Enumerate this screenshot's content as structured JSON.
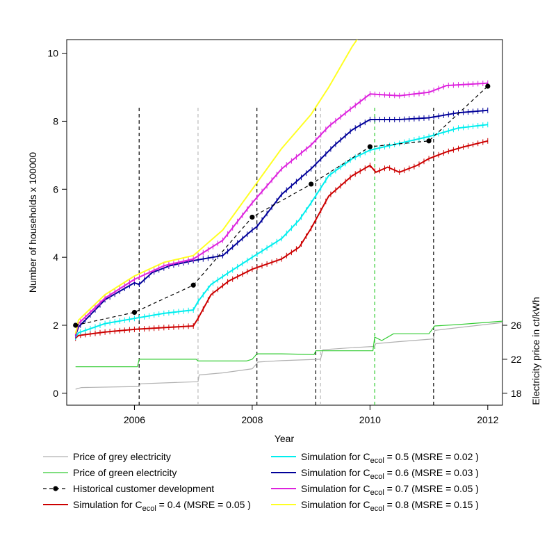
{
  "chart_data": {
    "type": "line",
    "xlabel": "Year",
    "ylabel": "Number of households x 100000",
    "y2label": "Electricity price in ct/kWh",
    "xlim": [
      2004.85,
      2012.25
    ],
    "ylim": [
      -0.35,
      10.4
    ],
    "x_ticks": [
      2006,
      2008,
      2010,
      2012
    ],
    "y_ticks": [
      0,
      2,
      4,
      6,
      8,
      10
    ],
    "y2_ticks": [
      18,
      22,
      26
    ],
    "y2_ticks_at_left_scale": [
      0,
      1,
      2
    ],
    "vlines": [
      {
        "x": 2006.08,
        "color": "#000000",
        "to_y": 8.4
      },
      {
        "x": 2007.08,
        "color": "#bbbbbb",
        "to_y": 8.4
      },
      {
        "x": 2008.08,
        "color": "#000000",
        "to_y": 8.4
      },
      {
        "x": 2009.08,
        "color": "#000000",
        "to_y": 8.4
      },
      {
        "x": 2009.16,
        "color": "#bbbbbb",
        "to_y": 8.4
      },
      {
        "x": 2010.08,
        "color": "#33cc33",
        "to_y": 8.4
      },
      {
        "x": 2011.08,
        "color": "#000000",
        "to_y": 8.4
      }
    ],
    "series": [
      {
        "key": "grey",
        "color": "#b0b0b0",
        "style": "step",
        "points": [
          [
            2005.0,
            0.12
          ],
          [
            2005.1,
            0.17
          ],
          [
            2006.08,
            0.2
          ],
          [
            2006.1,
            0.28
          ],
          [
            2007.08,
            0.34
          ],
          [
            2007.1,
            0.54
          ],
          [
            2007.5,
            0.6
          ],
          [
            2008.0,
            0.72
          ],
          [
            2008.1,
            0.92
          ],
          [
            2008.5,
            0.96
          ],
          [
            2009.16,
            1.0
          ],
          [
            2009.2,
            1.28
          ],
          [
            2009.6,
            1.33
          ],
          [
            2010.08,
            1.38
          ],
          [
            2010.1,
            1.46
          ],
          [
            2010.5,
            1.52
          ],
          [
            2011.08,
            1.6
          ],
          [
            2011.1,
            1.85
          ],
          [
            2011.5,
            1.93
          ],
          [
            2012.25,
            2.08
          ]
        ]
      },
      {
        "key": "green",
        "color": "#33cc33",
        "style": "step",
        "points": [
          [
            2005.0,
            0.78
          ],
          [
            2006.05,
            0.78
          ],
          [
            2006.08,
            1.0
          ],
          [
            2007.05,
            1.0
          ],
          [
            2007.08,
            0.95
          ],
          [
            2007.9,
            0.95
          ],
          [
            2008.0,
            1.0
          ],
          [
            2008.08,
            1.16
          ],
          [
            2008.5,
            1.16
          ],
          [
            2009.05,
            1.14
          ],
          [
            2009.08,
            1.25
          ],
          [
            2010.05,
            1.25
          ],
          [
            2010.08,
            1.65
          ],
          [
            2010.2,
            1.55
          ],
          [
            2010.4,
            1.75
          ],
          [
            2011.0,
            1.75
          ],
          [
            2011.1,
            1.98
          ],
          [
            2011.5,
            2.02
          ],
          [
            2012.25,
            2.12
          ]
        ]
      },
      {
        "key": "hist",
        "color": "#000000",
        "style": "dashed",
        "points": [
          [
            2005.0,
            2.0
          ],
          [
            2006.0,
            2.38
          ],
          [
            2007.0,
            3.18
          ],
          [
            2008.0,
            5.18
          ],
          [
            2009.0,
            6.15
          ],
          [
            2010.0,
            7.25
          ],
          [
            2011.0,
            7.42
          ],
          [
            2012.0,
            9.03
          ]
        ]
      },
      {
        "key": "c04",
        "color": "#cc0000",
        "style": "ticked",
        "points": [
          [
            2005.0,
            1.62
          ],
          [
            2005.05,
            1.7
          ],
          [
            2005.5,
            1.8
          ],
          [
            2006.0,
            1.88
          ],
          [
            2006.5,
            1.93
          ],
          [
            2007.0,
            1.98
          ],
          [
            2007.08,
            2.2
          ],
          [
            2007.3,
            2.9
          ],
          [
            2007.6,
            3.3
          ],
          [
            2008.0,
            3.65
          ],
          [
            2008.5,
            3.95
          ],
          [
            2008.8,
            4.3
          ],
          [
            2009.0,
            4.85
          ],
          [
            2009.3,
            5.8
          ],
          [
            2009.7,
            6.4
          ],
          [
            2010.0,
            6.7
          ],
          [
            2010.1,
            6.5
          ],
          [
            2010.3,
            6.65
          ],
          [
            2010.5,
            6.5
          ],
          [
            2010.8,
            6.7
          ],
          [
            2011.0,
            6.9
          ],
          [
            2011.3,
            7.1
          ],
          [
            2011.6,
            7.25
          ],
          [
            2012.0,
            7.42
          ]
        ]
      },
      {
        "key": "c05",
        "color": "#00eeee",
        "style": "ticked",
        "points": [
          [
            2005.0,
            1.65
          ],
          [
            2005.05,
            1.78
          ],
          [
            2005.5,
            2.05
          ],
          [
            2006.0,
            2.2
          ],
          [
            2006.5,
            2.35
          ],
          [
            2007.0,
            2.45
          ],
          [
            2007.08,
            2.7
          ],
          [
            2007.3,
            3.2
          ],
          [
            2007.6,
            3.55
          ],
          [
            2008.0,
            4.0
          ],
          [
            2008.5,
            4.55
          ],
          [
            2008.8,
            5.1
          ],
          [
            2009.0,
            5.6
          ],
          [
            2009.3,
            6.4
          ],
          [
            2009.7,
            6.9
          ],
          [
            2010.0,
            7.15
          ],
          [
            2010.5,
            7.35
          ],
          [
            2011.0,
            7.55
          ],
          [
            2011.5,
            7.8
          ],
          [
            2012.0,
            7.9
          ]
        ]
      },
      {
        "key": "c06",
        "color": "#000099",
        "style": "ticked",
        "points": [
          [
            2005.0,
            1.7
          ],
          [
            2005.05,
            1.95
          ],
          [
            2005.5,
            2.75
          ],
          [
            2006.0,
            3.25
          ],
          [
            2006.08,
            3.2
          ],
          [
            2006.3,
            3.55
          ],
          [
            2006.6,
            3.75
          ],
          [
            2007.0,
            3.9
          ],
          [
            2007.5,
            4.05
          ],
          [
            2008.0,
            4.8
          ],
          [
            2008.08,
            4.9
          ],
          [
            2008.5,
            5.85
          ],
          [
            2009.0,
            6.6
          ],
          [
            2009.4,
            7.3
          ],
          [
            2009.7,
            7.75
          ],
          [
            2010.0,
            8.05
          ],
          [
            2010.5,
            8.05
          ],
          [
            2011.0,
            8.1
          ],
          [
            2011.5,
            8.25
          ],
          [
            2012.0,
            8.32
          ]
        ]
      },
      {
        "key": "c07",
        "color": "#dd22dd",
        "style": "ticked",
        "points": [
          [
            2005.0,
            1.72
          ],
          [
            2005.05,
            2.05
          ],
          [
            2005.5,
            2.8
          ],
          [
            2006.0,
            3.35
          ],
          [
            2006.5,
            3.75
          ],
          [
            2007.0,
            3.95
          ],
          [
            2007.5,
            4.5
          ],
          [
            2008.0,
            5.6
          ],
          [
            2008.5,
            6.6
          ],
          [
            2009.0,
            7.3
          ],
          [
            2009.3,
            7.85
          ],
          [
            2009.7,
            8.4
          ],
          [
            2010.0,
            8.8
          ],
          [
            2010.5,
            8.75
          ],
          [
            2011.0,
            8.85
          ],
          [
            2011.3,
            9.05
          ],
          [
            2012.0,
            9.12
          ]
        ]
      },
      {
        "key": "c08",
        "color": "#ffff22",
        "style": "solid",
        "points": [
          [
            2005.0,
            1.75
          ],
          [
            2005.05,
            2.15
          ],
          [
            2005.5,
            2.9
          ],
          [
            2006.0,
            3.45
          ],
          [
            2006.5,
            3.85
          ],
          [
            2007.0,
            4.05
          ],
          [
            2007.5,
            4.8
          ],
          [
            2008.0,
            6.0
          ],
          [
            2008.5,
            7.2
          ],
          [
            2009.0,
            8.2
          ],
          [
            2009.3,
            9.0
          ],
          [
            2009.7,
            10.2
          ],
          [
            2009.8,
            10.45
          ]
        ]
      }
    ]
  },
  "legend": {
    "left": [
      {
        "key": "grey",
        "text": "Price of grey electricity"
      },
      {
        "key": "green",
        "text": "Price of green electricity"
      },
      {
        "key": "hist",
        "text": "Historical customer development"
      },
      {
        "key": "c04",
        "pre": "Simulation for C",
        "sub": "ecol",
        "post": " = 0.4 (MSRE = 0.05 )"
      }
    ],
    "right": [
      {
        "key": "c05",
        "pre": "Simulation for C",
        "sub": "ecol",
        "post": " = 0.5 (MSRE = 0.02 )"
      },
      {
        "key": "c06",
        "pre": "Simulation for C",
        "sub": "ecol",
        "post": " = 0.6 (MSRE = 0.03 )"
      },
      {
        "key": "c07",
        "pre": "Simulation for C",
        "sub": "ecol",
        "post": " = 0.7 (MSRE = 0.05 )"
      },
      {
        "key": "c08",
        "pre": "Simulation for C",
        "sub": "ecol",
        "post": " = 0.8 (MSRE = 0.15 )"
      }
    ]
  }
}
